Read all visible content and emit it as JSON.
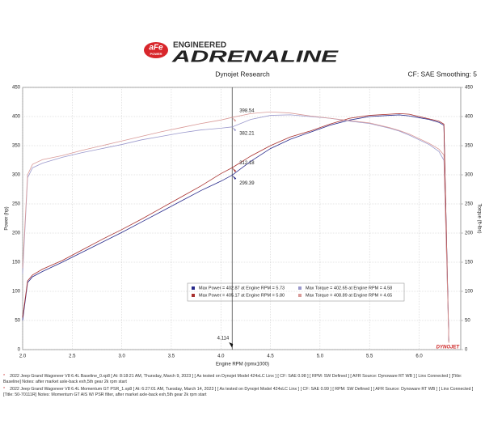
{
  "header": {
    "brand": "aFe",
    "brand_sub": "POWER",
    "tagline_top": "ENGINEERED",
    "tagline": "ADRENALINE"
  },
  "chart_data": {
    "type": "line",
    "title": "Dynojet Research",
    "subtitle": "CF: SAE Smoothing: 5",
    "x_label": "Engine RPM (rpmx1000)",
    "y_label": "Power (hp)",
    "y2_label": "Torque (ft-lbs)",
    "watermark": "DYNOJET",
    "xlim": [
      2.0,
      6.42
    ],
    "ylim": [
      0,
      450
    ],
    "y2lim": [
      0,
      450
    ],
    "xticks": [
      {
        "value": 2,
        "label": "2.0"
      },
      2.5,
      {
        "value": 3,
        "label": "3.0"
      },
      3.5,
      {
        "value": 4,
        "label": "4.0"
      },
      4.5,
      {
        "value": 5,
        "label": "5.0"
      },
      5.5,
      {
        "value": 6,
        "label": "6.0"
      }
    ],
    "yticks": [
      0,
      50,
      100,
      150,
      200,
      250,
      300,
      350,
      400,
      450
    ],
    "y2ticks": [
      0,
      50,
      100,
      150,
      200,
      250,
      300,
      350,
      400,
      450
    ],
    "grid": true,
    "cursor": 4.114,
    "x": [
      2.0,
      2.05,
      2.1,
      2.2,
      2.4,
      2.6,
      2.8,
      3.0,
      3.2,
      3.4,
      3.6,
      3.8,
      4.0,
      4.114,
      4.3,
      4.5,
      4.7,
      4.9,
      5.1,
      5.3,
      5.5,
      5.7,
      5.8,
      5.9,
      6.0,
      6.1,
      6.2,
      6.25,
      6.3
    ],
    "series": [
      {
        "color": "#26288a",
        "values": [
          50,
          115,
          125,
          134,
          150,
          167,
          184,
          201,
          219,
          237,
          255,
          273,
          289,
          299.39,
          323,
          345,
          361,
          373,
          385,
          394,
          400,
          402,
          402.87,
          401,
          398,
          395,
          390,
          385,
          15
        ]
      },
      {
        "color": "#9a98cc",
        "axis": "y2",
        "values": [
          130,
          295,
          312,
          320,
          330,
          338,
          345,
          352,
          360,
          366,
          372,
          377,
          380,
          382.21,
          395,
          402,
          403,
          400,
          397,
          392,
          388,
          380,
          375,
          368,
          360,
          352,
          340,
          325,
          15
        ]
      },
      {
        "color": "#a8302e",
        "values": [
          55,
          118,
          128,
          138,
          153,
          171,
          189,
          206,
          224,
          243,
          262,
          281,
          302,
          312.18,
          332,
          350,
          365,
          375,
          387,
          397,
          402,
          404,
          405,
          404,
          400,
          396,
          392,
          387,
          12
        ]
      },
      {
        "color": "#d99a98",
        "axis": "y2",
        "values": [
          140,
          300,
          318,
          326,
          333,
          342,
          350,
          358,
          366,
          374,
          381,
          388,
          394,
          398.54,
          405,
          408,
          406,
          401,
          397,
          393,
          389,
          381,
          376,
          370,
          362,
          354,
          344,
          334,
          12
        ]
      }
    ],
    "legend": [
      {
        "color": "#26288a",
        "text": "Max Power = 402.87 at Engine RPM = 5.73"
      },
      {
        "color": "#9a98cc",
        "text": "Max Torque = 402.65 at Engine RPM = 4.58"
      },
      {
        "color": "#a8302e",
        "text": "Max Power = 405.17 at Engine RPM = 5.80"
      },
      {
        "color": "#d99a98",
        "text": "Max Torque = 408.89 at Engine RPM = 4.65"
      }
    ]
  },
  "footer": [
    "2022 Jeep Grand Wagoneer V8 6.4L Baseline_0.xp8 [ At: 8:18:21 AM, Thursday, March 9, 2023 ] [ As tested on Dynojet Model 424xLC Linx ] [ CF: SAE 0.98 ] [ RPM: SW Defined ] [ AFR Source: Dynoware RT WB ] [ Linx Connected ] [Title: Baseline] Notes: after market axle-back exh,5th gear 2k rpm start",
    "2022 Jeep Grand Wagoneer V8 6.4L Momentum GT PSR_1.xp8 [ At: 6:27:01 AM, Tuesday, March 14, 2023 ] [ As tested on Dynojet Model 424xLC Linx ] [ CF: SAE 0.99 ] [ RPM: SW Defined ] [ AFR Source: Dynoware RT WB ] [ Linx Connected ] [Title: 50-70111R] Notes: Momentum GT AIS W/ PSR filter, after market axle-back exh,5th gear 2k rpm start"
  ]
}
